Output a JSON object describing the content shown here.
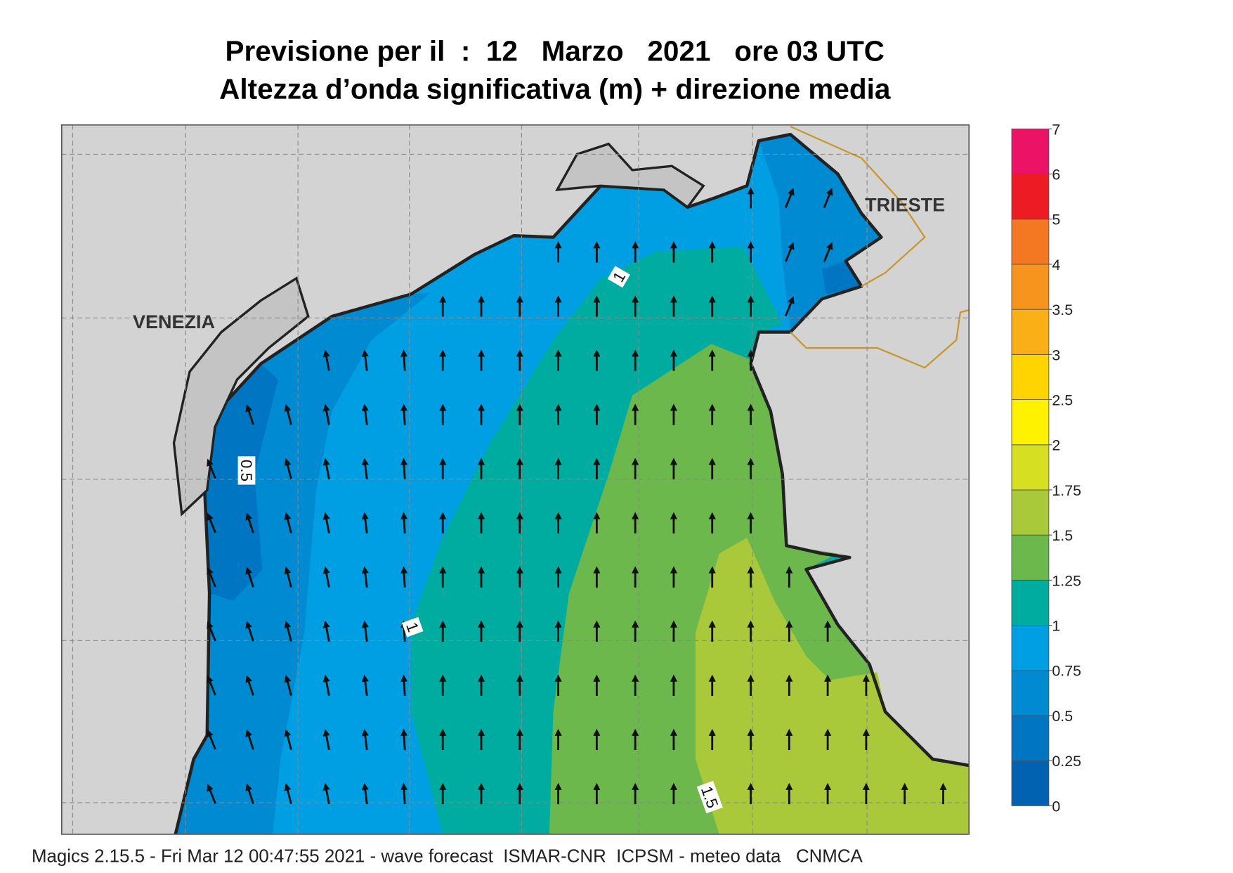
{
  "title": [
    "Previsione per il  :  12   Marzo   2021   ore 03 UTC",
    "Altezza d’onda significativa (m) + direzione media"
  ],
  "places": [
    "VENEZIA",
    "TRIESTE"
  ],
  "contour_labels": [
    "1",
    "1",
    "0.5",
    "1.5"
  ],
  "colorbar": {
    "levels": [
      0,
      0.25,
      0.5,
      0.75,
      1,
      1.25,
      1.5,
      1.75,
      2,
      2.5,
      3,
      3.5,
      4,
      5,
      6,
      7
    ],
    "colors": [
      "#0062b0",
      "#0076c3",
      "#008ad2",
      "#009fe3",
      "#00aba0",
      "#6cb84c",
      "#a9c93a",
      "#d7df23",
      "#fff200",
      "#ffd400",
      "#fbaf17",
      "#f7941d",
      "#f47721",
      "#ed1c24",
      "#ec1266"
    ]
  },
  "footer": "Magics 2.15.5 - Fri Mar 12 00:47:55 2021 - wave forecast  ISMAR-CNR  ICPSM - meteo data   CNMCA"
}
